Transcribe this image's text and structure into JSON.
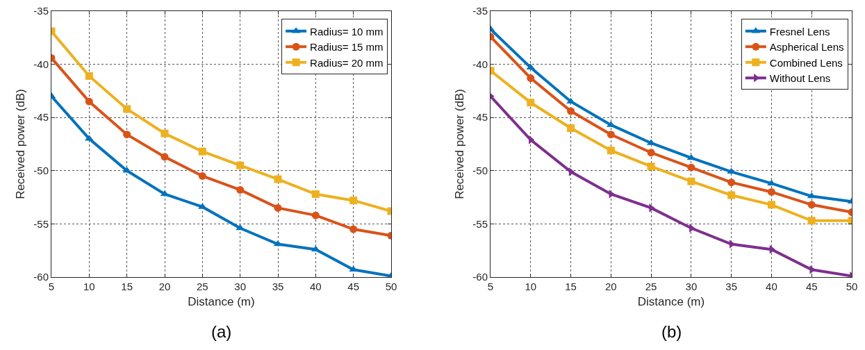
{
  "chart_data": [
    {
      "type": "line",
      "xlabel": "Distance (m)",
      "ylabel": "Received power (dB)",
      "annotations": [
        "(a)"
      ],
      "x": [
        5,
        10,
        15,
        20,
        25,
        30,
        35,
        40,
        45,
        50
      ],
      "series": [
        {
          "name": "Radius= 10 mm",
          "color": "#0072bd",
          "marker": "triangle",
          "values": [
            -43,
            -47,
            -50,
            -52.2,
            -53.4,
            -55.4,
            -56.9,
            -57.4,
            -59.3,
            -59.9
          ]
        },
        {
          "name": "Radius= 15 mm",
          "color": "#d95319",
          "marker": "circle",
          "values": [
            -39.4,
            -43.5,
            -46.6,
            -48.7,
            -50.5,
            -51.8,
            -53.5,
            -54.2,
            -55.5,
            -56.1
          ]
        },
        {
          "name": "Radius= 20 mm",
          "color": "#edb120",
          "marker": "square",
          "values": [
            -36.9,
            -41.1,
            -44.2,
            -46.5,
            -48.2,
            -49.5,
            -50.8,
            -52.2,
            -52.8,
            -53.8
          ]
        }
      ],
      "xlim": [
        5,
        50
      ],
      "xticks": [
        5,
        10,
        15,
        20,
        25,
        30,
        35,
        40,
        45,
        50
      ],
      "ylim": [
        -60,
        -35
      ],
      "yticks": [
        -60,
        -55,
        -50,
        -45,
        -40,
        -35
      ],
      "grid": true,
      "legend": "top right",
      "line_style": "solid"
    },
    {
      "type": "line",
      "xlabel": "Distance (m)",
      "ylabel": "Received power (dB)",
      "annotations": [
        "(b)"
      ],
      "x": [
        5,
        10,
        15,
        20,
        25,
        30,
        35,
        40,
        45,
        50
      ],
      "series": [
        {
          "name": "Fresnel Lens",
          "color": "#0072bd",
          "marker": "triangle",
          "values": [
            -36.7,
            -40.3,
            -43.5,
            -45.7,
            -47.4,
            -48.8,
            -50.1,
            -51.2,
            -52.4,
            -52.9
          ]
        },
        {
          "name": "Aspherical Lens",
          "color": "#d95319",
          "marker": "circle",
          "values": [
            -37.4,
            -41.3,
            -44.4,
            -46.6,
            -48.3,
            -49.7,
            -51.1,
            -52.0,
            -53.2,
            -53.9
          ]
        },
        {
          "name": "Combined Lens",
          "color": "#edb120",
          "marker": "square",
          "values": [
            -40.6,
            -43.6,
            -46.0,
            -48.1,
            -49.6,
            -51.0,
            -52.3,
            -53.2,
            -54.7,
            -54.7
          ]
        },
        {
          "name": "Without Lens",
          "color": "#7e2f8e",
          "marker": "triangle-right",
          "values": [
            -43,
            -47.1,
            -50.1,
            -52.2,
            -53.5,
            -55.4,
            -56.9,
            -57.4,
            -59.3,
            -59.9
          ]
        }
      ],
      "xlim": [
        5,
        50
      ],
      "xticks": [
        5,
        10,
        15,
        20,
        25,
        30,
        35,
        40,
        45,
        50
      ],
      "ylim": [
        -60,
        -35
      ],
      "yticks": [
        -60,
        -55,
        -50,
        -45,
        -40,
        -35
      ],
      "grid": true,
      "legend": "top right",
      "line_style": "solid"
    }
  ]
}
